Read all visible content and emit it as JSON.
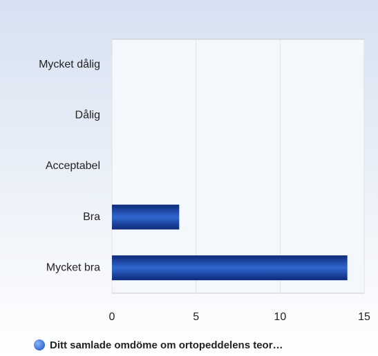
{
  "chart_data": {
    "type": "barh",
    "categories": [
      "Mycket dålig",
      "Dålig",
      "Acceptabel",
      "Bra",
      "Mycket bra"
    ],
    "series": [
      {
        "name": "Ditt samlade omdöme om ortopeddelens teor…",
        "color": "#2f66d0",
        "values": [
          0,
          0,
          0,
          4,
          14
        ]
      }
    ],
    "xlim": [
      0,
      15
    ],
    "xticks": [
      0,
      5,
      10,
      15
    ],
    "grid": true
  }
}
